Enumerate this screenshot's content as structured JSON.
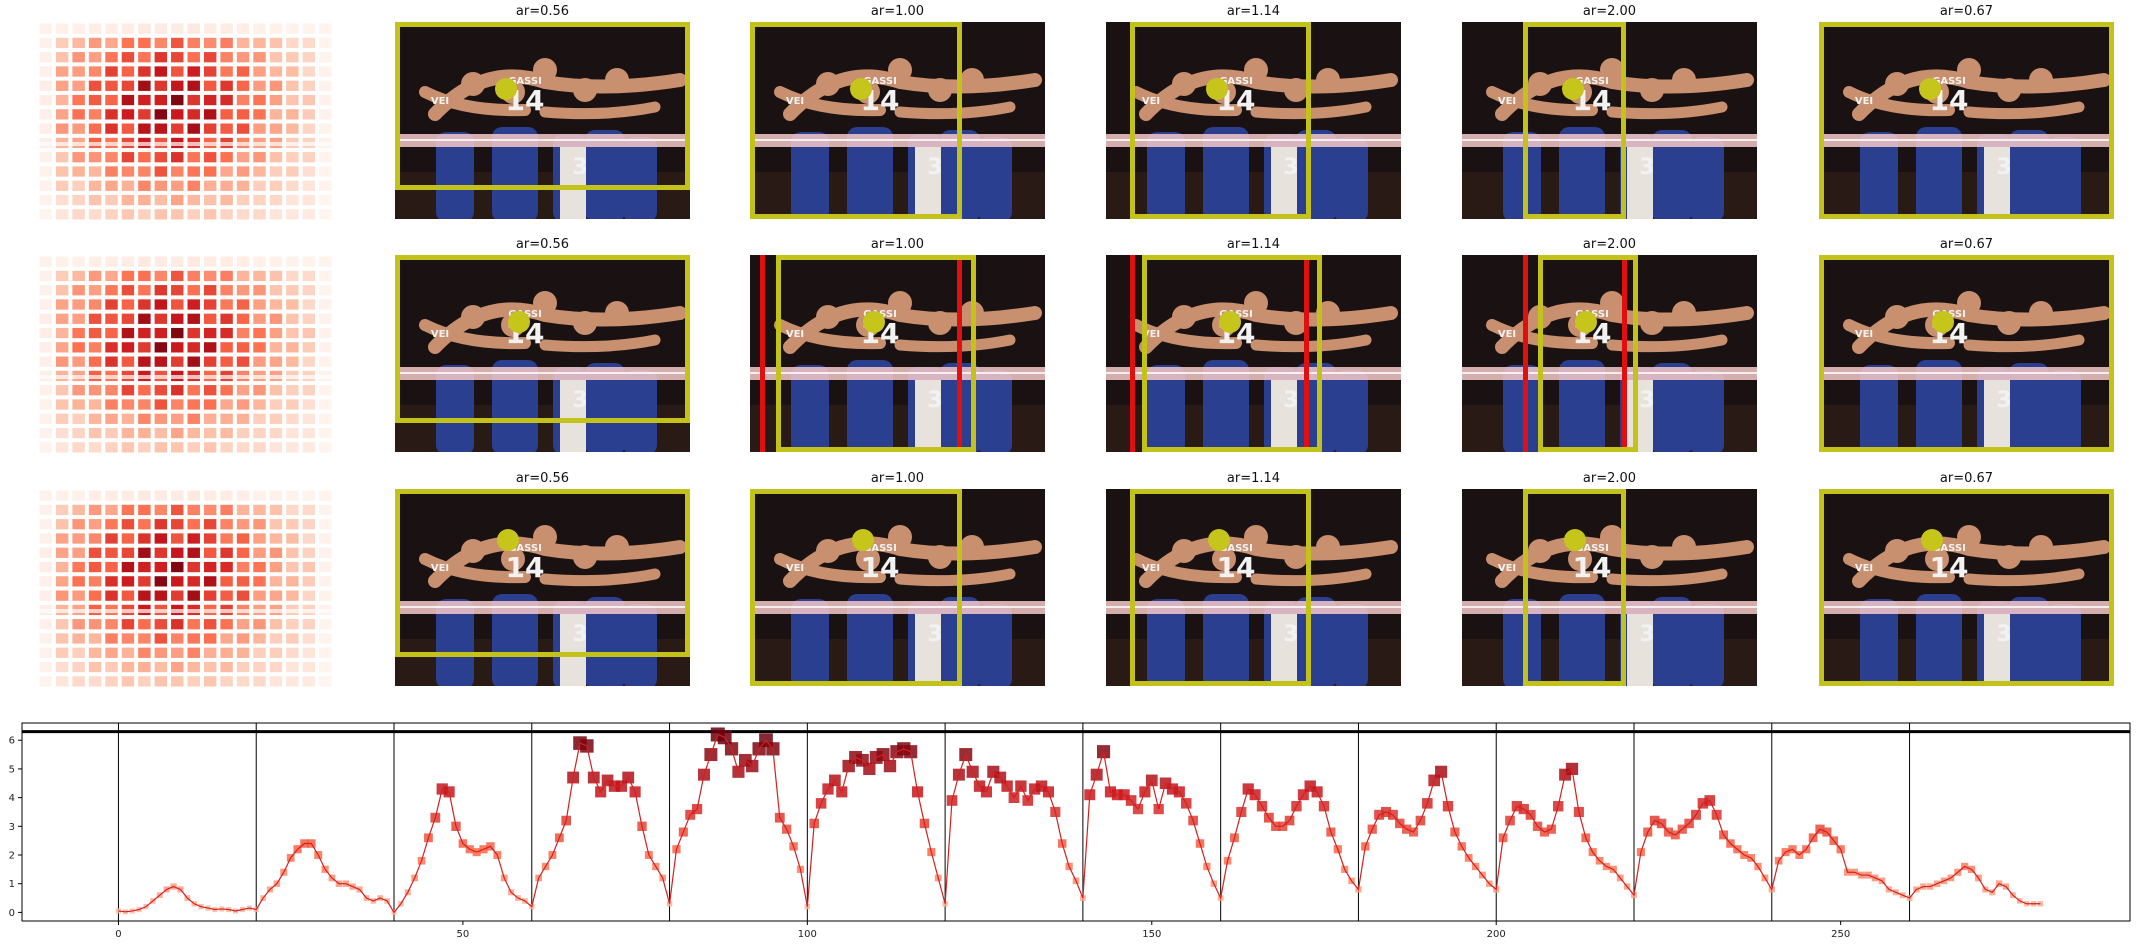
{
  "panels": {
    "rows": [
      {
        "titles": [
          "ar=0.56",
          "ar=1.00",
          "ar=1.14",
          "ar=2.00",
          "ar=0.67"
        ],
        "red_edges": [
          false,
          false,
          false,
          false,
          false
        ]
      },
      {
        "titles": [
          "ar=0.56",
          "ar=1.00",
          "ar=1.14",
          "ar=2.00",
          "ar=0.67"
        ],
        "red_edges": [
          false,
          true,
          true,
          true,
          false
        ]
      },
      {
        "titles": [
          "ar=0.56",
          "ar=1.00",
          "ar=1.14",
          "ar=2.00",
          "ar=0.67"
        ],
        "red_edges": [
          false,
          false,
          false,
          false,
          false
        ]
      }
    ],
    "photo_jersey_text": [
      "GASSI",
      "14",
      "VEI",
      "3"
    ]
  },
  "chart_data": {
    "type": "line",
    "xlim": [
      -14,
      292
    ],
    "ylim": [
      -0.3,
      6.6
    ],
    "xticks": [
      0,
      50,
      100,
      150,
      200,
      250
    ],
    "yticks": [
      0,
      1,
      2,
      3,
      4,
      5,
      6
    ],
    "reference_line_y": 6.3,
    "segment_boundaries": [
      0,
      20,
      40,
      60,
      80,
      100,
      120,
      140,
      160,
      180,
      200,
      220,
      240,
      260
    ],
    "x_start": 0,
    "values": [
      0.05,
      0.02,
      0.05,
      0.1,
      0.2,
      0.4,
      0.6,
      0.8,
      0.9,
      0.8,
      0.5,
      0.3,
      0.2,
      0.15,
      0.1,
      0.12,
      0.1,
      0.05,
      0.1,
      0.15,
      0.1,
      0.5,
      0.8,
      1.0,
      1.4,
      1.9,
      2.2,
      2.4,
      2.4,
      2.0,
      1.5,
      1.2,
      1.0,
      1.0,
      0.9,
      0.8,
      0.5,
      0.4,
      0.5,
      0.4,
      0.0,
      0.3,
      0.7,
      1.2,
      1.8,
      2.6,
      3.3,
      4.3,
      4.2,
      3.0,
      2.4,
      2.2,
      2.1,
      2.2,
      2.3,
      2.0,
      1.2,
      0.7,
      0.5,
      0.4,
      0.2,
      1.2,
      1.6,
      2.0,
      2.6,
      3.2,
      4.7,
      5.9,
      5.8,
      4.7,
      4.2,
      4.6,
      4.4,
      4.4,
      4.7,
      4.2,
      3.0,
      2.0,
      1.6,
      1.2,
      0.3,
      2.2,
      2.8,
      3.4,
      3.6,
      4.8,
      5.5,
      6.2,
      6.1,
      5.7,
      4.9,
      5.3,
      5.1,
      5.7,
      6.0,
      5.7,
      3.3,
      2.9,
      2.3,
      1.5,
      0.2,
      3.1,
      3.8,
      4.3,
      4.6,
      4.2,
      5.1,
      5.4,
      5.3,
      5.0,
      5.4,
      5.5,
      5.1,
      5.6,
      5.7,
      5.6,
      4.2,
      3.1,
      2.1,
      1.2,
      0.3,
      3.9,
      4.8,
      5.5,
      4.9,
      4.4,
      4.2,
      4.9,
      4.7,
      4.4,
      4.0,
      4.4,
      3.9,
      4.3,
      4.4,
      4.2,
      3.5,
      2.4,
      1.6,
      1.1,
      0.5,
      4.1,
      4.8,
      5.6,
      4.2,
      4.1,
      4.1,
      3.9,
      3.6,
      4.2,
      4.6,
      3.6,
      4.5,
      4.3,
      4.2,
      3.8,
      3.2,
      2.4,
      1.6,
      1.0,
      0.5,
      1.8,
      2.6,
      3.5,
      4.3,
      4.1,
      3.7,
      3.3,
      3.0,
      3.0,
      3.2,
      3.7,
      4.1,
      4.4,
      4.2,
      3.7,
      2.8,
      2.2,
      1.5,
      1.1,
      0.8,
      2.3,
      2.9,
      3.4,
      3.5,
      3.4,
      3.1,
      2.9,
      2.8,
      3.2,
      3.8,
      4.6,
      4.9,
      3.7,
      2.8,
      2.3,
      1.9,
      1.6,
      1.3,
      1.0,
      0.8,
      2.6,
      3.2,
      3.7,
      3.6,
      3.4,
      3.0,
      2.8,
      2.9,
      3.7,
      4.8,
      5.0,
      3.5,
      2.6,
      2.1,
      1.8,
      1.6,
      1.5,
      1.2,
      0.9,
      0.6,
      2.1,
      2.8,
      3.2,
      3.1,
      2.8,
      2.7,
      2.9,
      3.1,
      3.4,
      3.8,
      3.9,
      3.4,
      2.7,
      2.4,
      2.2,
      2.0,
      1.9,
      1.6,
      1.2,
      0.8,
      1.8,
      2.1,
      2.2,
      2.0,
      2.2,
      2.6,
      2.9,
      2.8,
      2.5,
      2.2,
      1.4,
      1.4,
      1.3,
      1.3,
      1.2,
      1.1,
      0.8,
      0.7,
      0.6,
      0.5,
      0.8,
      0.9,
      0.9,
      1.0,
      1.1,
      1.2,
      1.4,
      1.6,
      1.5,
      1.2,
      0.8,
      0.7,
      1.0,
      0.9,
      0.6,
      0.4,
      0.3,
      0.3,
      0.3
    ]
  }
}
